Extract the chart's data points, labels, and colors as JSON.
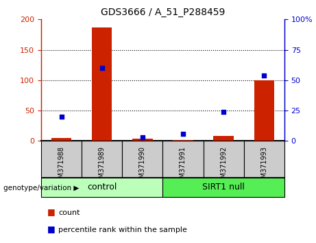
{
  "title": "GDS3666 / A_51_P288459",
  "samples": [
    "GSM371988",
    "GSM371989",
    "GSM371990",
    "GSM371991",
    "GSM371992",
    "GSM371993"
  ],
  "count_values": [
    5,
    187,
    4,
    2,
    8,
    100
  ],
  "percentile_values": [
    20,
    60,
    3,
    6,
    24,
    54
  ],
  "left_ylim": [
    0,
    200
  ],
  "right_ylim": [
    0,
    100
  ],
  "left_yticks": [
    0,
    50,
    100,
    150,
    200
  ],
  "right_yticks": [
    0,
    25,
    50,
    75,
    100
  ],
  "right_yticklabels": [
    "0",
    "25",
    "50",
    "75",
    "100%"
  ],
  "bar_color": "#cc2200",
  "dot_color": "#0000cc",
  "groups": [
    {
      "label": "control",
      "n_samples": 3,
      "color": "#bbffbb"
    },
    {
      "label": "SIRT1 null",
      "n_samples": 3,
      "color": "#55ee55"
    }
  ],
  "group_label_text": "genotype/variation",
  "legend_count_label": "count",
  "legend_percentile_label": "percentile rank within the sample",
  "tick_area_color": "#cccccc",
  "bar_width": 0.5,
  "grid_yticks": [
    50,
    100,
    150
  ],
  "figsize": [
    4.61,
    3.54
  ],
  "dpi": 100
}
